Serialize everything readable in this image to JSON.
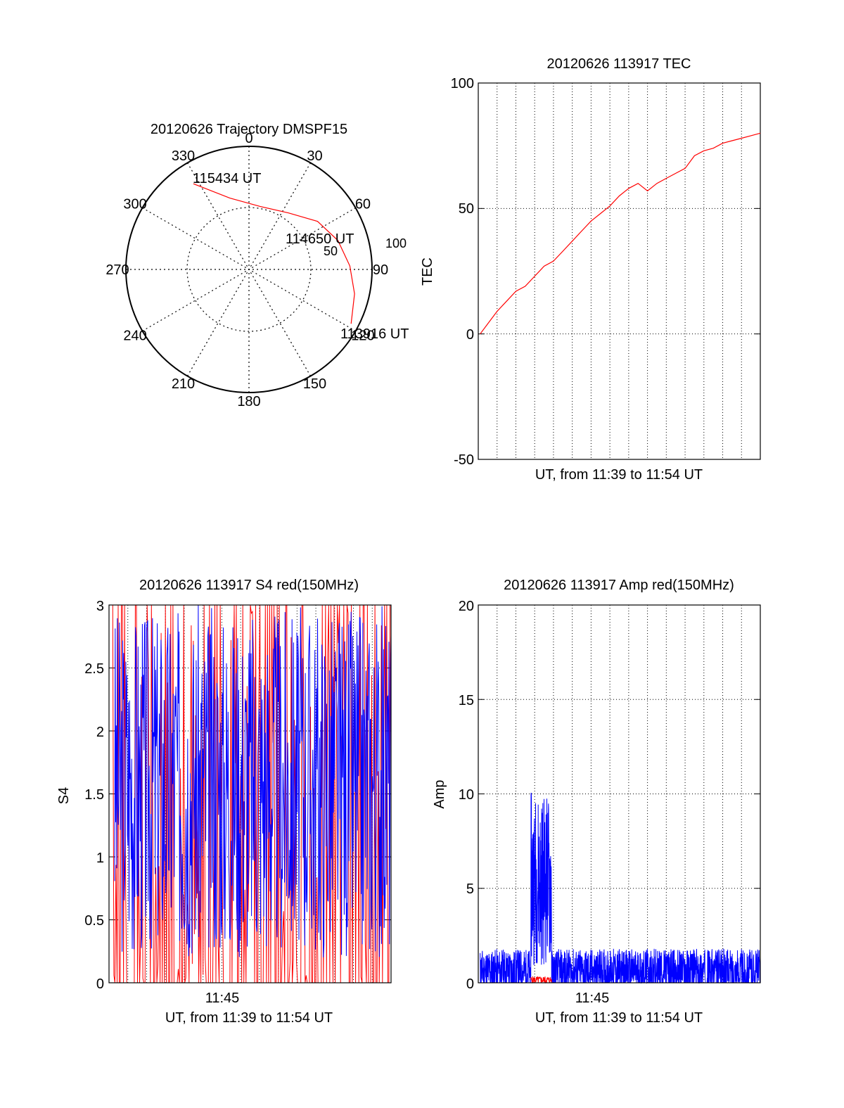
{
  "colors": {
    "red": "#ff0000",
    "blue": "#0000ff",
    "axis": "#000000"
  },
  "chart_data": [
    {
      "id": "trajectory",
      "type": "polar",
      "title": "20120626 Trajectory DMSPF15",
      "angle_labels": [
        "0",
        "30",
        "60",
        "90",
        "120",
        "150",
        "180",
        "210",
        "240",
        "270",
        "300",
        "330"
      ],
      "radial_ticks": [
        "50",
        "100"
      ],
      "rlim": [
        0,
        100
      ],
      "grid": true,
      "series": [
        {
          "color": "red",
          "points": [
            {
              "az": 327,
              "r": 83,
              "label": "115434 UT"
            },
            {
              "az": 345,
              "r": 60
            },
            {
              "az": 10,
              "r": 52
            },
            {
              "az": 35,
              "r": 56
            },
            {
              "az": 55,
              "r": 68
            },
            {
              "az": 72,
              "r": 76
            },
            {
              "az": 88,
              "r": 82
            },
            {
              "az": 103,
              "r": 88
            },
            {
              "az": 118,
              "r": 94,
              "label": "113916 UT"
            }
          ]
        }
      ],
      "point_labels": [
        "115434 UT",
        "114650 UT",
        "113916 UT"
      ]
    },
    {
      "id": "tec",
      "type": "line",
      "title": "20120626 113917 TEC",
      "xlabel": "UT, from 11:39 to 11:54 UT",
      "ylabel": "TEC",
      "xlim": [
        0,
        15
      ],
      "ylim": [
        -50,
        100
      ],
      "yticks": [
        "100",
        "50",
        "0",
        "-50"
      ],
      "grid": true,
      "series": [
        {
          "color": "red",
          "x": [
            0.1,
            0.5,
            1,
            1.5,
            2,
            2.5,
            3,
            3.5,
            4,
            4.5,
            5,
            5.5,
            6,
            6.5,
            7,
            7.5,
            8,
            8.5,
            9,
            9.5,
            10,
            10.5,
            11,
            11.5,
            12,
            12.5,
            13,
            13.5,
            14,
            14.5,
            15
          ],
          "y": [
            0,
            4,
            9,
            13,
            17,
            19,
            23,
            27,
            29,
            33,
            37,
            41,
            45,
            48,
            51,
            55,
            58,
            60,
            57,
            60,
            62,
            64,
            66,
            71,
            73,
            74,
            76,
            77,
            78,
            79,
            80
          ]
        }
      ]
    },
    {
      "id": "s4",
      "type": "line",
      "title": "20120626 113917 S4 red(150MHz)",
      "xlabel": "UT, from 11:39 to 11:54 UT",
      "ylabel": "S4",
      "xlim": [
        0,
        15
      ],
      "ylim": [
        0,
        3
      ],
      "xticks": [
        "11:45"
      ],
      "yticks": [
        "3",
        "2.5",
        "2",
        "1.5",
        "1",
        "0.5",
        "0"
      ],
      "grid": true,
      "series": [
        {
          "color": "red",
          "pattern": "noise",
          "seed": 7,
          "x_range": [
            0.2,
            15
          ],
          "base": 0.4,
          "spread": 3.0
        },
        {
          "color": "blue",
          "pattern": "noise",
          "seed": 3,
          "x_range": [
            0.3,
            15
          ],
          "base": 1.6,
          "spread": 1.4
        }
      ]
    },
    {
      "id": "amp",
      "type": "line",
      "title": "20120626 113917 Amp red(150MHz)",
      "xlabel": "UT, from 11:39 to 11:54 UT",
      "ylabel": "Amp",
      "xlim": [
        0,
        15
      ],
      "ylim": [
        0,
        20
      ],
      "xticks": [
        "11:45"
      ],
      "yticks": [
        "20",
        "15",
        "10",
        "5",
        "0"
      ],
      "grid": true,
      "series": [
        {
          "color": "blue",
          "pattern": "noise",
          "seed": 11,
          "x_range": [
            0.1,
            15
          ],
          "base": 0.6,
          "spread": 1.2,
          "burst": {
            "x": [
              2.8,
              3.9
            ],
            "base": 5.5,
            "spread": 4.6
          }
        },
        {
          "color": "red",
          "pattern": "noise",
          "seed": 5,
          "x_range": [
            2.8,
            3.9
          ],
          "base": 0.15,
          "spread": 0.2
        }
      ]
    }
  ]
}
